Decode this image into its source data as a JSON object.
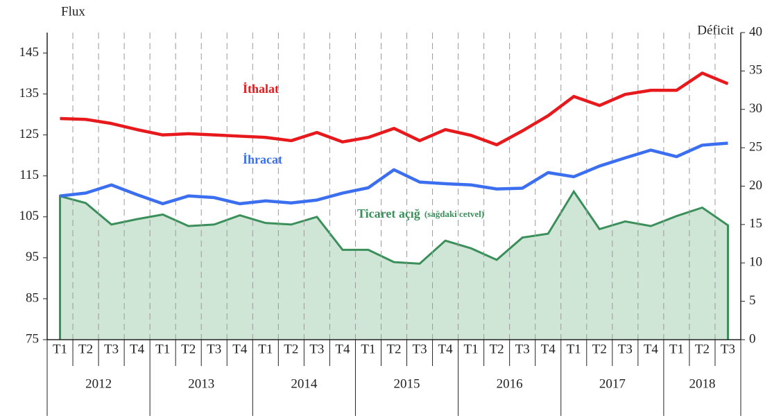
{
  "chart_data": {
    "type": "line",
    "y_label": "Flux",
    "y2_label": "Déficit",
    "categories": [
      "T1",
      "T2",
      "T3",
      "T4",
      "T1",
      "T2",
      "T3",
      "T4",
      "T1",
      "T2",
      "T3",
      "T4",
      "T1",
      "T2",
      "T3",
      "T4",
      "T1",
      "T2",
      "T3",
      "T4",
      "T1",
      "T2",
      "T3",
      "T4",
      "T1",
      "T2",
      "T3"
    ],
    "years": [
      "2012",
      "2013",
      "2014",
      "2015",
      "2016",
      "2017",
      "2018"
    ],
    "ylim": [
      75,
      150
    ],
    "yticks": [
      75,
      85,
      95,
      105,
      115,
      125,
      135,
      145
    ],
    "y2lim": [
      0,
      40
    ],
    "y2ticks": [
      0,
      5,
      10,
      15,
      20,
      25,
      30,
      35,
      40
    ],
    "series": [
      {
        "name": "İthalat",
        "color": "#e8191c",
        "values": [
          129,
          128.8,
          127.8,
          126.3,
          125,
          125.3,
          125,
          124.7,
          124.4,
          123.6,
          125.6,
          123.3,
          124.4,
          126.6,
          123.6,
          126.3,
          124.9,
          122.6,
          126,
          129.7,
          134.4,
          132.2,
          134.9,
          135.9,
          135.9,
          140.1,
          137.5
        ]
      },
      {
        "name": "İhracat",
        "color": "#3b6ff0",
        "values": [
          110.1,
          110.8,
          112.8,
          110.4,
          108.2,
          110.1,
          109.7,
          108.2,
          108.9,
          108.4,
          109.1,
          110.8,
          112.1,
          116.5,
          113.5,
          113.1,
          112.8,
          111.8,
          112,
          115.8,
          114.8,
          117.4,
          119.4,
          121.3,
          119.7,
          122.5,
          123
        ]
      },
      {
        "name": "Ticaret açığ",
        "note": "(sağdaki cetvel)",
        "color": "#3a8f5a",
        "fill": "#cfe6d7",
        "axis": "y2",
        "values": [
          18.7,
          17.8,
          15,
          15.7,
          16.3,
          14.8,
          15,
          16.2,
          15.2,
          15,
          16,
          11.7,
          11.7,
          10.1,
          9.9,
          12.9,
          11.9,
          10.4,
          13.3,
          13.8,
          19.3,
          14.4,
          15.4,
          14.8,
          16.1,
          17.2,
          14.9
        ]
      }
    ]
  }
}
